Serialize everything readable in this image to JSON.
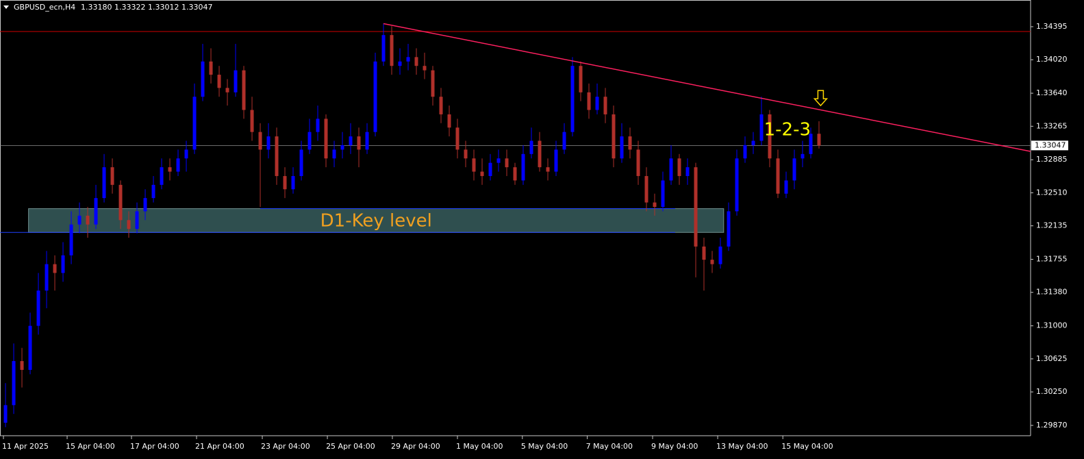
{
  "chart_data": {
    "type": "candlestick",
    "symbol": "GBPUSD_ecn,H4",
    "header_values": [
      "1.33180",
      "1.33322",
      "1.33012",
      "1.33047"
    ],
    "up_color": "#0000ff",
    "down_color": "#b0302a",
    "xlim": [
      -0.67,
      124.75
    ],
    "ylim": [
      1.29753,
      1.34698
    ],
    "yticks": [
      1.34395,
      {
        "value": 1.3402,
        "label": "1.34020"
      },
      {
        "value": 1.3364,
        "label": "1.33640"
      },
      1.33265,
      1.32885,
      {
        "value": 1.3251,
        "label": "1.32510"
      },
      1.32135,
      1.31755,
      {
        "value": 1.3138,
        "label": "1.31380"
      },
      {
        "value": 1.31,
        "label": "1.31000"
      },
      1.30625,
      {
        "value": 1.3025,
        "label": "1.30250"
      },
      {
        "value": 1.2987,
        "label": "1.29870"
      }
    ],
    "xticks": [
      {
        "value": -0.25,
        "label": "11 Apr 2025"
      },
      {
        "value": 7.5,
        "label": "15 Apr 04:00"
      },
      {
        "value": 15.33,
        "label": "17 Apr 04:00"
      },
      {
        "value": 23.25,
        "label": "21 Apr 04:00"
      },
      {
        "value": 31.25,
        "label": "23 Apr 04:00"
      },
      {
        "value": 39.17,
        "label": "25 Apr 04:00"
      },
      {
        "value": 47.08,
        "label": "29 Apr 04:00"
      },
      {
        "value": 55,
        "label": "1 May 04:00"
      },
      {
        "value": 62.9,
        "label": "5 May 04:00"
      },
      {
        "value": 70.8,
        "label": "7 May 04:00"
      },
      {
        "value": 78.75,
        "label": "9 May 04:00"
      },
      {
        "value": 86.67,
        "label": "13 May 04:00"
      },
      {
        "value": 94.6,
        "label": "15 May 04:00"
      }
    ],
    "ohlc": [
      [
        1.299,
        1.3035,
        1.2985,
        1.301
      ],
      [
        1.301,
        1.308,
        1.3,
        1.306
      ],
      [
        1.306,
        1.3075,
        1.303,
        1.305
      ],
      [
        1.305,
        1.3115,
        1.3045,
        1.31
      ],
      [
        1.31,
        1.316,
        1.309,
        1.314
      ],
      [
        1.314,
        1.3185,
        1.312,
        1.317
      ],
      [
        1.317,
        1.318,
        1.314,
        1.316
      ],
      [
        1.316,
        1.3195,
        1.315,
        1.318
      ],
      [
        1.318,
        1.323,
        1.317,
        1.3215
      ],
      [
        1.3215,
        1.324,
        1.3205,
        1.3225
      ],
      [
        1.3225,
        1.3235,
        1.32,
        1.3215
      ],
      [
        1.3215,
        1.326,
        1.321,
        1.3245
      ],
      [
        1.3245,
        1.3295,
        1.324,
        1.328
      ],
      [
        1.328,
        1.329,
        1.325,
        1.326
      ],
      [
        1.326,
        1.3265,
        1.321,
        1.322
      ],
      [
        1.322,
        1.323,
        1.32,
        1.321
      ],
      [
        1.321,
        1.324,
        1.3205,
        1.323
      ],
      [
        1.323,
        1.3255,
        1.322,
        1.3245
      ],
      [
        1.3245,
        1.327,
        1.324,
        1.326
      ],
      [
        1.326,
        1.329,
        1.3255,
        1.328
      ],
      [
        1.328,
        1.329,
        1.3265,
        1.3275
      ],
      [
        1.3275,
        1.33,
        1.327,
        1.329
      ],
      [
        1.329,
        1.331,
        1.3275,
        1.33
      ],
      [
        1.33,
        1.3375,
        1.3295,
        1.336
      ],
      [
        1.336,
        1.342,
        1.3355,
        1.34
      ],
      [
        1.34,
        1.3415,
        1.3375,
        1.3385
      ],
      [
        1.3385,
        1.3395,
        1.336,
        1.337
      ],
      [
        1.337,
        1.338,
        1.335,
        1.3365
      ],
      [
        1.3365,
        1.342,
        1.336,
        1.339
      ],
      [
        1.339,
        1.3395,
        1.3335,
        1.3345
      ],
      [
        1.3345,
        1.336,
        1.331,
        1.332
      ],
      [
        1.332,
        1.333,
        1.3235,
        1.33
      ],
      [
        1.33,
        1.333,
        1.329,
        1.3315
      ],
      [
        1.3315,
        1.3325,
        1.326,
        1.327
      ],
      [
        1.327,
        1.328,
        1.3245,
        1.3255
      ],
      [
        1.3255,
        1.328,
        1.325,
        1.327
      ],
      [
        1.327,
        1.331,
        1.3265,
        1.33
      ],
      [
        1.33,
        1.3335,
        1.3295,
        1.332
      ],
      [
        1.332,
        1.335,
        1.331,
        1.3335
      ],
      [
        1.3335,
        1.334,
        1.328,
        1.329
      ],
      [
        1.329,
        1.331,
        1.328,
        1.33
      ],
      [
        1.33,
        1.332,
        1.329,
        1.3305
      ],
      [
        1.3305,
        1.333,
        1.3295,
        1.3315
      ],
      [
        1.3315,
        1.3325,
        1.328,
        1.33
      ],
      [
        1.33,
        1.333,
        1.3295,
        1.332
      ],
      [
        1.332,
        1.341,
        1.3315,
        1.34
      ],
      [
        1.34,
        1.3443,
        1.3395,
        1.343
      ],
      [
        1.343,
        1.344,
        1.3385,
        1.3395
      ],
      [
        1.3395,
        1.3415,
        1.3385,
        1.34
      ],
      [
        1.34,
        1.342,
        1.339,
        1.3405
      ],
      [
        1.3405,
        1.3415,
        1.3385,
        1.3395
      ],
      [
        1.3395,
        1.341,
        1.338,
        1.339
      ],
      [
        1.339,
        1.3395,
        1.335,
        1.336
      ],
      [
        1.336,
        1.337,
        1.333,
        1.334
      ],
      [
        1.334,
        1.335,
        1.3315,
        1.3325
      ],
      [
        1.3325,
        1.3335,
        1.329,
        1.33
      ],
      [
        1.33,
        1.331,
        1.328,
        1.329
      ],
      [
        1.329,
        1.33,
        1.3265,
        1.3275
      ],
      [
        1.3275,
        1.329,
        1.326,
        1.327
      ],
      [
        1.327,
        1.3295,
        1.3265,
        1.3285
      ],
      [
        1.3285,
        1.33,
        1.3275,
        1.329
      ],
      [
        1.329,
        1.33,
        1.327,
        1.328
      ],
      [
        1.328,
        1.3285,
        1.326,
        1.3265
      ],
      [
        1.3265,
        1.3305,
        1.326,
        1.3295
      ],
      [
        1.3295,
        1.3325,
        1.329,
        1.331
      ],
      [
        1.331,
        1.332,
        1.3275,
        1.328
      ],
      [
        1.328,
        1.329,
        1.3265,
        1.3275
      ],
      [
        1.3275,
        1.331,
        1.327,
        1.33
      ],
      [
        1.33,
        1.333,
        1.3295,
        1.332
      ],
      [
        1.332,
        1.3405,
        1.3315,
        1.3395
      ],
      [
        1.3395,
        1.34,
        1.3355,
        1.3365
      ],
      [
        1.3365,
        1.3375,
        1.3335,
        1.3345
      ],
      [
        1.3345,
        1.3375,
        1.334,
        1.336
      ],
      [
        1.336,
        1.337,
        1.333,
        1.334
      ],
      [
        1.334,
        1.335,
        1.328,
        1.329
      ],
      [
        1.329,
        1.333,
        1.3285,
        1.3315
      ],
      [
        1.3315,
        1.3325,
        1.329,
        1.33
      ],
      [
        1.33,
        1.331,
        1.326,
        1.327
      ],
      [
        1.327,
        1.328,
        1.323,
        1.324
      ],
      [
        1.324,
        1.325,
        1.3225,
        1.3235
      ],
      [
        1.3235,
        1.3275,
        1.323,
        1.3265
      ],
      [
        1.3265,
        1.3305,
        1.326,
        1.329
      ],
      [
        1.329,
        1.3295,
        1.326,
        1.327
      ],
      [
        1.327,
        1.329,
        1.326,
        1.328
      ],
      [
        1.328,
        1.3285,
        1.3155,
        1.319
      ],
      [
        1.319,
        1.32,
        1.314,
        1.3175
      ],
      [
        1.3175,
        1.3185,
        1.316,
        1.317
      ],
      [
        1.317,
        1.32,
        1.3165,
        1.319
      ],
      [
        1.319,
        1.324,
        1.3185,
        1.323
      ],
      [
        1.323,
        1.33,
        1.3225,
        1.329
      ],
      [
        1.329,
        1.3315,
        1.3285,
        1.3305
      ],
      [
        1.3305,
        1.332,
        1.3295,
        1.331
      ],
      [
        1.331,
        1.336,
        1.3305,
        1.334
      ],
      [
        1.334,
        1.3345,
        1.328,
        1.329
      ],
      [
        1.329,
        1.33,
        1.3245,
        1.325
      ],
      [
        1.325,
        1.3275,
        1.3245,
        1.3265
      ],
      [
        1.3265,
        1.33,
        1.3255,
        1.329
      ],
      [
        1.329,
        1.331,
        1.328,
        1.3295
      ],
      [
        1.3295,
        1.3325,
        1.329,
        1.3318
      ],
      [
        1.3318,
        1.33322,
        1.33012,
        1.33047
      ]
    ],
    "last_price": 1.33047,
    "hline": {
      "value": 1.3434,
      "color": "#d00000"
    },
    "trendline": {
      "x": [
        46,
        124.75
      ],
      "y": [
        1.3443,
        1.3298
      ],
      "color": "#ff2060"
    },
    "zone": {
      "x": [
        2.8,
        87.4
      ],
      "y": [
        1.3206,
        1.3233
      ],
      "color": "#2f4f4f",
      "label": "D1-Key level",
      "label_color": "#f0a020"
    },
    "zone_lines": [
      {
        "x": [
          31,
          81.5
        ],
        "y": 1.3233
      },
      {
        "x": [
          -0.67,
          81.5
        ],
        "y": 1.3206
      }
    ],
    "annotation": {
      "text": "1-2-3",
      "x": 92.3,
      "y": 1.3322,
      "color": "#ffff00"
    },
    "arrow": {
      "x": 99.2,
      "y": 1.335,
      "color": "#ffd700"
    }
  }
}
